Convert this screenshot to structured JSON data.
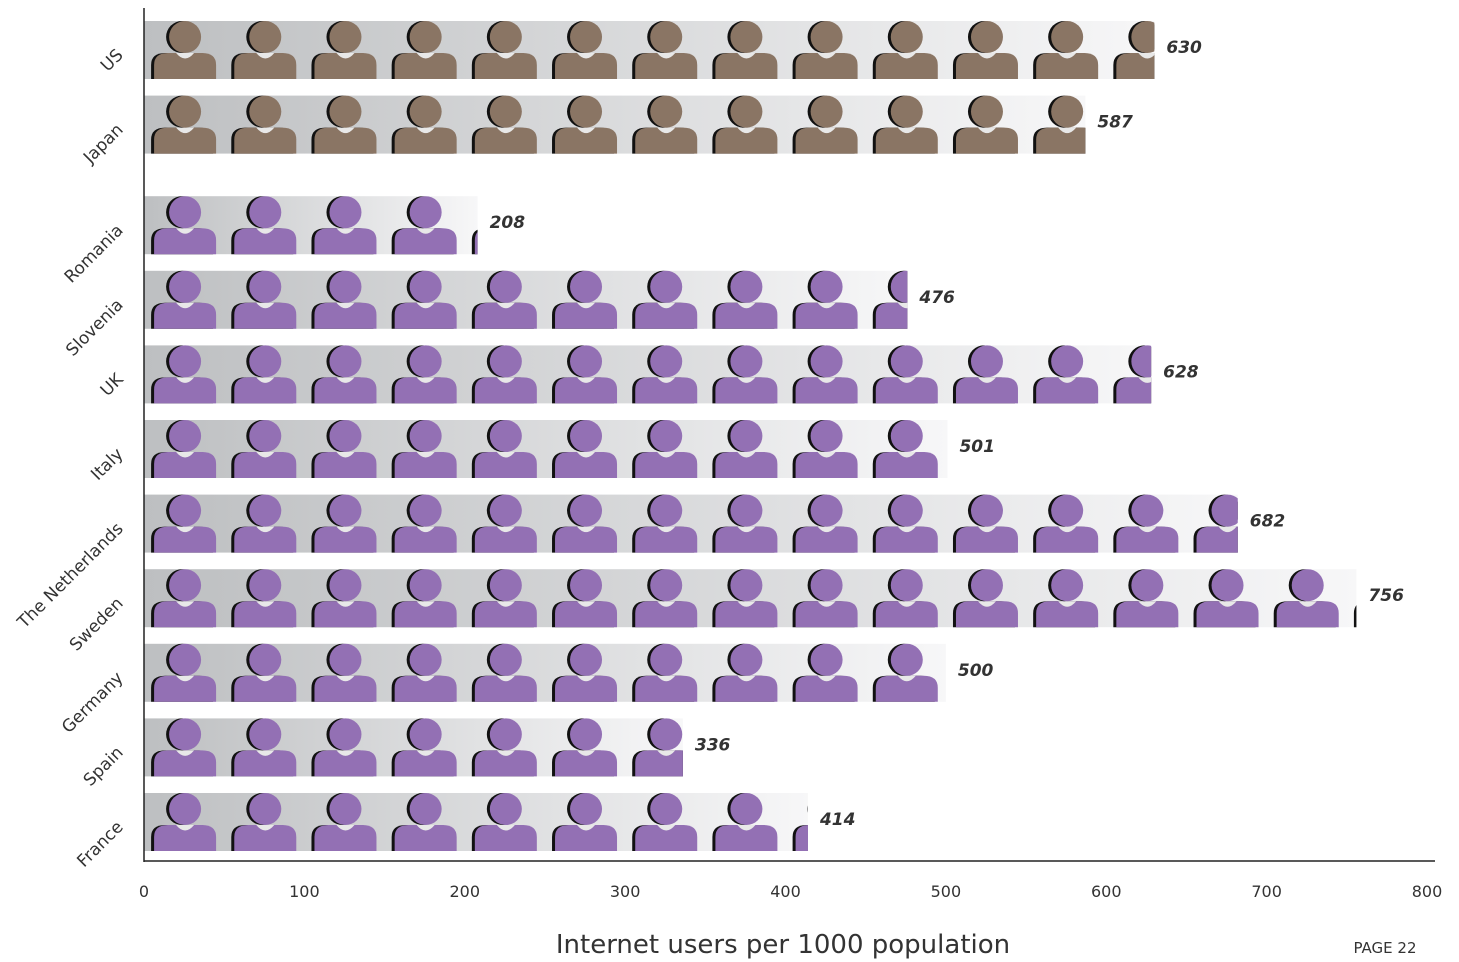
{
  "chart_data": {
    "type": "bar",
    "orientation": "horizontal",
    "categories": [
      "US",
      "Japan",
      "Romania",
      "Slovenia",
      "UK",
      "Italy",
      "The Netherlands",
      "Sweden",
      "Germany",
      "Spain",
      "France"
    ],
    "values": [
      630,
      587,
      208,
      476,
      628,
      501,
      682,
      756,
      500,
      336,
      414
    ],
    "group_colors": [
      "#8a7564",
      "#8a7564",
      "#9370b4",
      "#9370b4",
      "#9370b4",
      "#9370b4",
      "#9370b4",
      "#9370b4",
      "#9370b4",
      "#9370b4",
      "#9370b4"
    ],
    "xlabel": "Internet users per 1000 population",
    "xlim": [
      0,
      800
    ],
    "xticks": [
      0,
      100,
      200,
      300,
      400,
      500,
      600,
      700,
      800
    ],
    "grid": false,
    "icon": "person-icon"
  },
  "page_label": "PAGE 22"
}
